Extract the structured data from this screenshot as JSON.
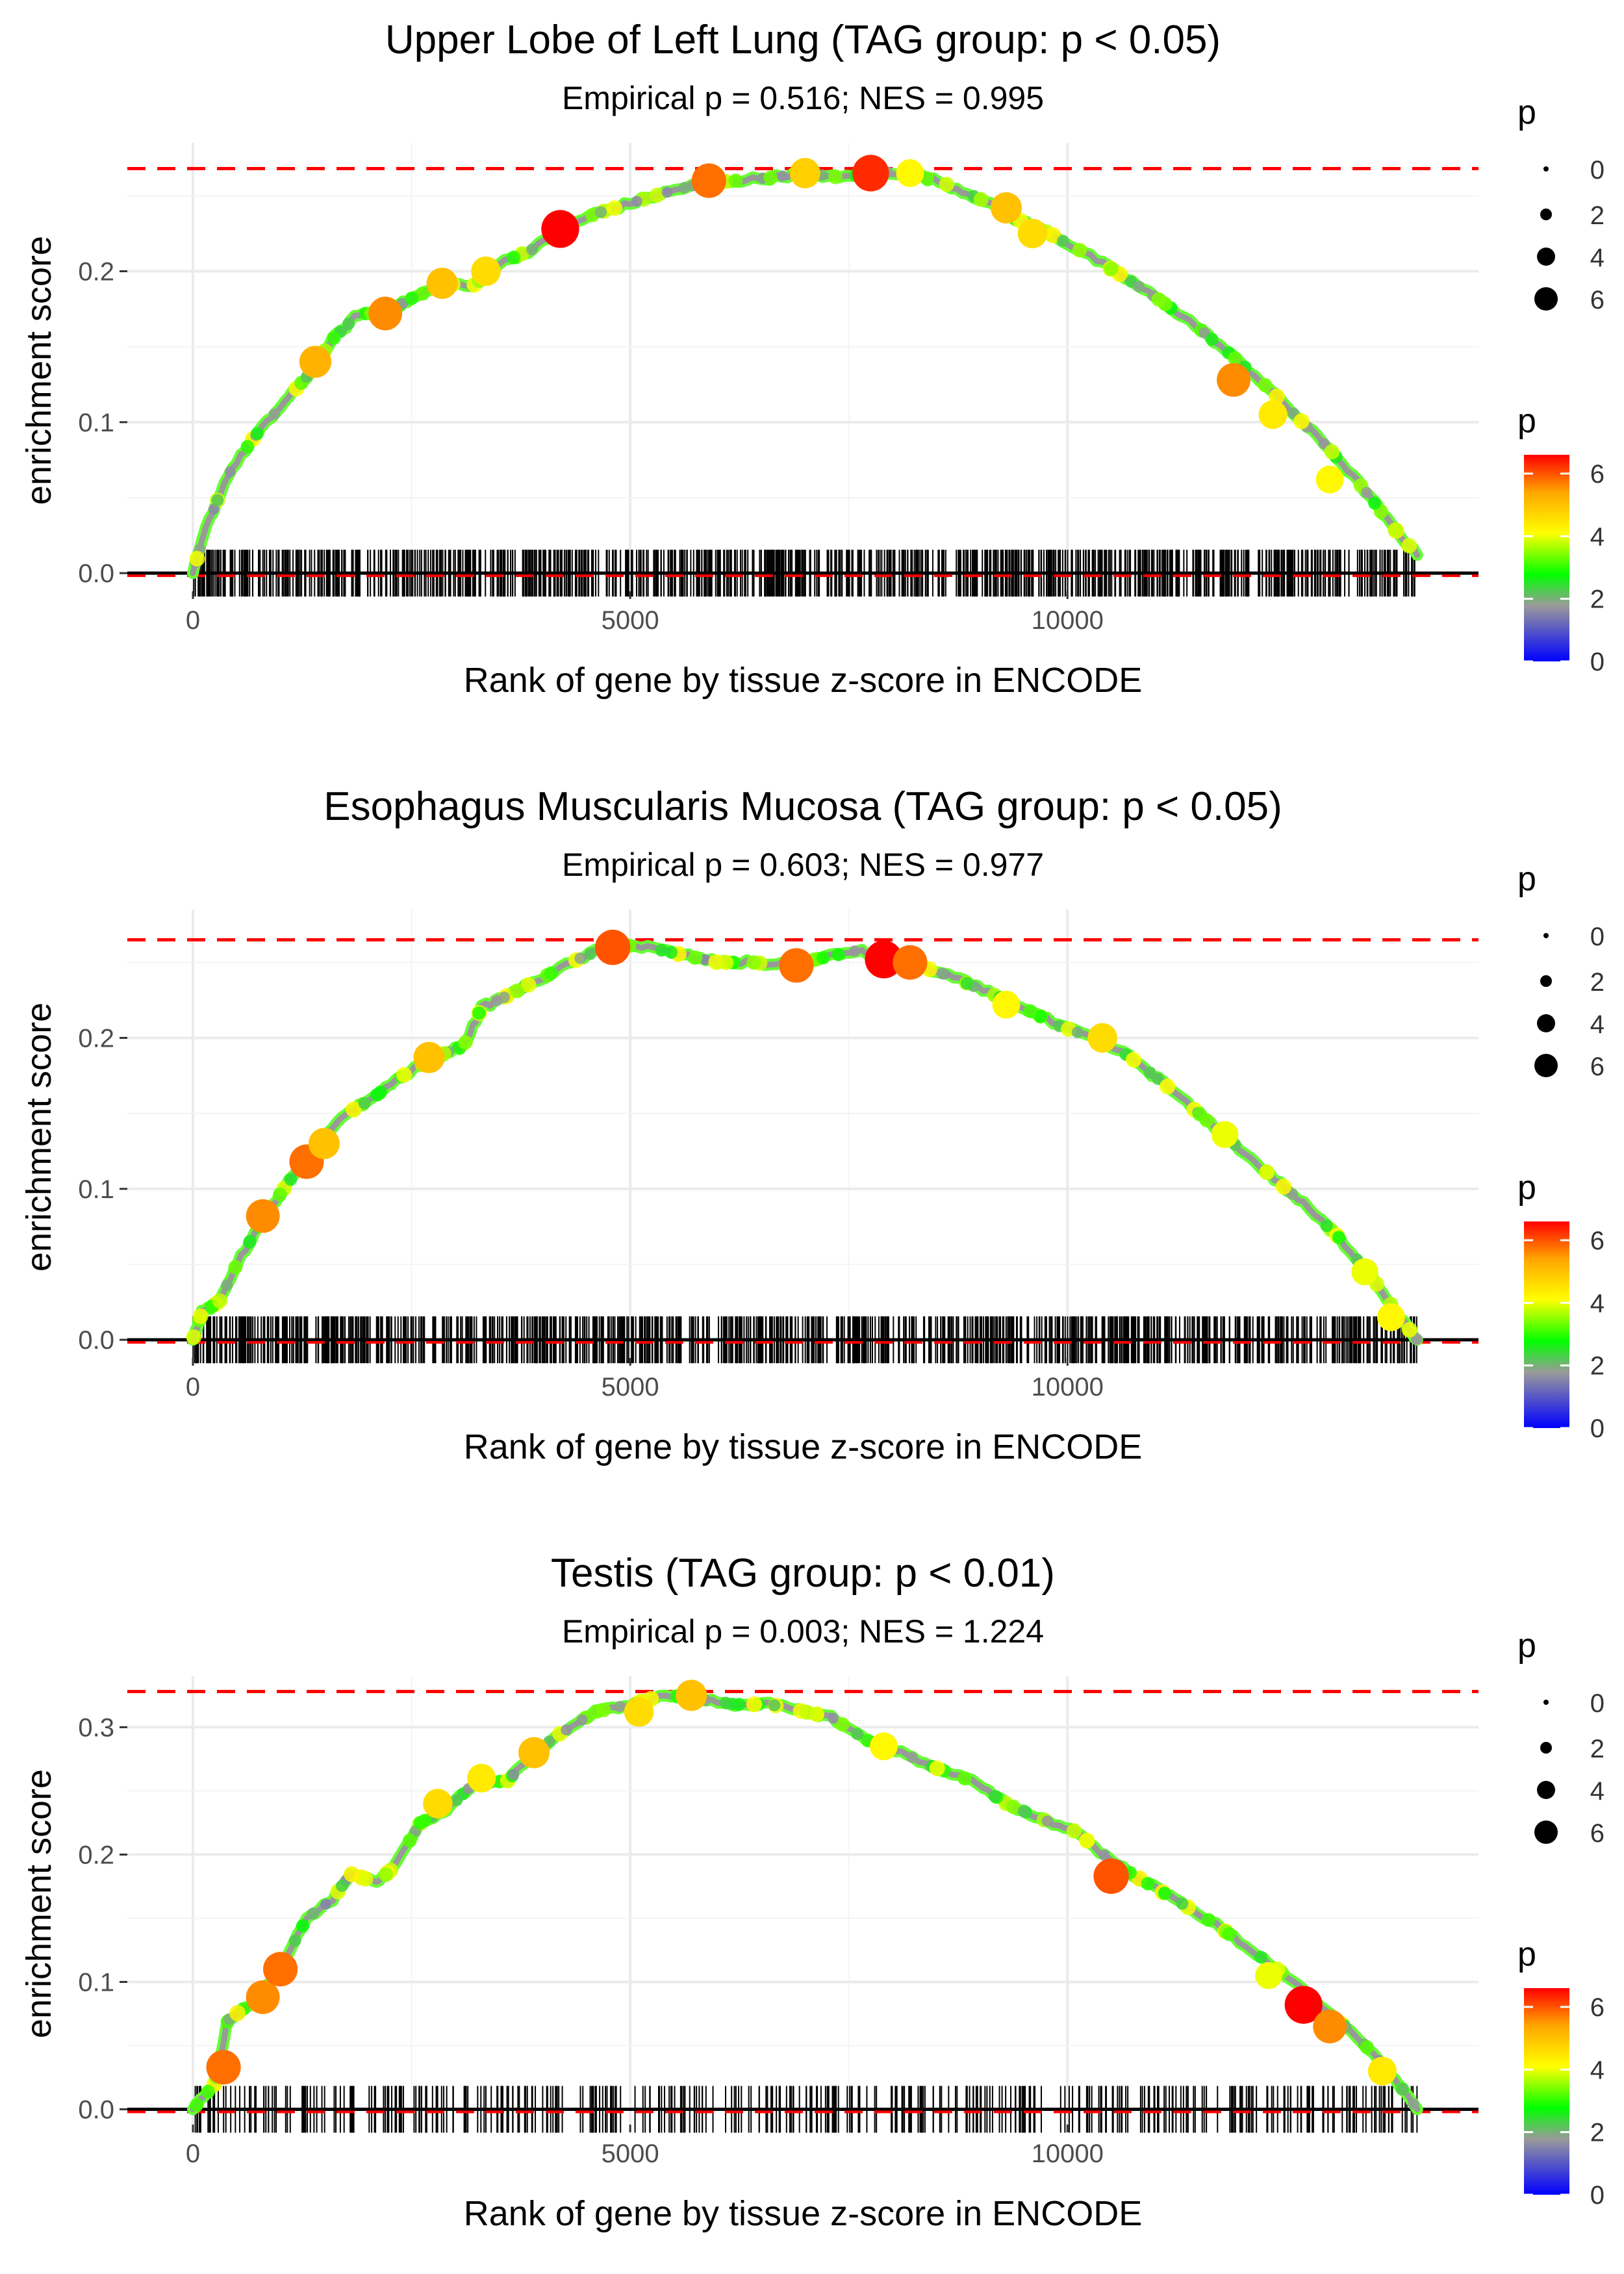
{
  "shared": {
    "xlabel": "Rank of gene by tissue z-score in ENCODE",
    "ylabel": "enrichment score",
    "legend_title": "p",
    "size_legend_values": [
      "0",
      "2",
      "4",
      "6"
    ],
    "colorbar_ticks": [
      "0",
      "2",
      "4",
      "6"
    ],
    "colorbar_tick_values": [
      0,
      2,
      4,
      6
    ],
    "colorbar_range": [
      0,
      6.6
    ],
    "colorbar_colors": [
      "#0000ff",
      "#9a9a9a",
      "#00ff00",
      "#ffff00",
      "#ffa500",
      "#ff0000"
    ],
    "x_ticks": [
      0,
      5000,
      10000
    ],
    "x_tick_labels": [
      "0",
      "5000",
      "10000"
    ],
    "xlim": [
      -750,
      14700
    ],
    "n_genes": 14000,
    "line_color": "#999999",
    "max_line_color": "#ff0000",
    "ink_color": "#000000"
  },
  "chart_data": [
    {
      "type": "line",
      "title": "Upper Lobe of Left Lung (TAG group: p < 0.05)",
      "subtitle": "Empirical p = 0.516; NES = 0.995",
      "ylim": [
        -0.012,
        0.285
      ],
      "y_ticks": [
        0.0,
        0.1,
        0.2
      ],
      "y_tick_labels": [
        "0.0",
        "0.1",
        "0.2"
      ],
      "max_es": 0.268,
      "curve": [
        [
          0,
          0.0
        ],
        [
          150,
          0.03
        ],
        [
          400,
          0.065
        ],
        [
          700,
          0.09
        ],
        [
          1000,
          0.11
        ],
        [
          1300,
          0.13
        ],
        [
          1600,
          0.155
        ],
        [
          1900,
          0.172
        ],
        [
          2200,
          0.172
        ],
        [
          2500,
          0.182
        ],
        [
          2900,
          0.192
        ],
        [
          3200,
          0.19
        ],
        [
          3500,
          0.205
        ],
        [
          3900,
          0.215
        ],
        [
          4200,
          0.228
        ],
        [
          4600,
          0.238
        ],
        [
          5000,
          0.245
        ],
        [
          5400,
          0.252
        ],
        [
          5800,
          0.258
        ],
        [
          6200,
          0.26
        ],
        [
          6600,
          0.262
        ],
        [
          7000,
          0.265
        ],
        [
          7400,
          0.262
        ],
        [
          7800,
          0.266
        ],
        [
          8200,
          0.265
        ],
        [
          8600,
          0.258
        ],
        [
          9000,
          0.248
        ],
        [
          9400,
          0.235
        ],
        [
          9800,
          0.225
        ],
        [
          10200,
          0.212
        ],
        [
          10600,
          0.198
        ],
        [
          11000,
          0.183
        ],
        [
          11400,
          0.167
        ],
        [
          11800,
          0.148
        ],
        [
          12200,
          0.128
        ],
        [
          12600,
          0.105
        ],
        [
          13000,
          0.082
        ],
        [
          13400,
          0.055
        ],
        [
          13700,
          0.032
        ],
        [
          14000,
          0.012
        ]
      ],
      "highlight_points": [
        [
          1400,
          0.14,
          5.2
        ],
        [
          2200,
          0.172,
          5.6
        ],
        [
          2850,
          0.192,
          5.0
        ],
        [
          3350,
          0.2,
          4.6
        ],
        [
          4200,
          0.228,
          6.6
        ],
        [
          5900,
          0.26,
          5.8
        ],
        [
          7000,
          0.265,
          4.8
        ],
        [
          7750,
          0.265,
          6.3
        ],
        [
          8200,
          0.265,
          4.2
        ],
        [
          9300,
          0.242,
          5.0
        ],
        [
          9600,
          0.225,
          4.6
        ],
        [
          11900,
          0.128,
          5.6
        ],
        [
          12350,
          0.105,
          4.4
        ],
        [
          13000,
          0.062,
          4.2
        ]
      ],
      "tick_density": "dense"
    },
    {
      "type": "line",
      "title": "Esophagus Muscularis Mucosa (TAG group: p < 0.05)",
      "subtitle": "Empirical p = 0.603; NES = 0.977",
      "ylim": [
        -0.012,
        0.285
      ],
      "y_ticks": [
        0.0,
        0.1,
        0.2
      ],
      "y_tick_labels": [
        "0.0",
        "0.1",
        "0.2"
      ],
      "max_es": 0.265,
      "curve": [
        [
          0,
          0.0
        ],
        [
          100,
          0.018
        ],
        [
          300,
          0.025
        ],
        [
          500,
          0.05
        ],
        [
          800,
          0.08
        ],
        [
          1100,
          0.105
        ],
        [
          1400,
          0.125
        ],
        [
          1700,
          0.148
        ],
        [
          2000,
          0.158
        ],
        [
          2400,
          0.175
        ],
        [
          2800,
          0.188
        ],
        [
          3100,
          0.195
        ],
        [
          3300,
          0.22
        ],
        [
          3600,
          0.228
        ],
        [
          4000,
          0.24
        ],
        [
          4400,
          0.252
        ],
        [
          4800,
          0.262
        ],
        [
          5200,
          0.26
        ],
        [
          5600,
          0.255
        ],
        [
          6000,
          0.25
        ],
        [
          6400,
          0.25
        ],
        [
          6800,
          0.248
        ],
        [
          7200,
          0.253
        ],
        [
          7600,
          0.258
        ],
        [
          7900,
          0.252
        ],
        [
          8300,
          0.248
        ],
        [
          8700,
          0.24
        ],
        [
          9100,
          0.23
        ],
        [
          9500,
          0.22
        ],
        [
          9900,
          0.208
        ],
        [
          10300,
          0.2
        ],
        [
          10700,
          0.188
        ],
        [
          11100,
          0.17
        ],
        [
          11500,
          0.15
        ],
        [
          11900,
          0.13
        ],
        [
          12300,
          0.11
        ],
        [
          12700,
          0.09
        ],
        [
          13100,
          0.068
        ],
        [
          13500,
          0.04
        ],
        [
          13800,
          0.015
        ],
        [
          14000,
          0.0
        ]
      ],
      "highlight_points": [
        [
          800,
          0.082,
          5.6
        ],
        [
          1300,
          0.118,
          5.8
        ],
        [
          1500,
          0.13,
          5.0
        ],
        [
          2700,
          0.187,
          5.0
        ],
        [
          4800,
          0.26,
          6.0
        ],
        [
          6900,
          0.248,
          5.8
        ],
        [
          7900,
          0.252,
          6.6
        ],
        [
          8200,
          0.25,
          5.8
        ],
        [
          9300,
          0.222,
          4.2
        ],
        [
          10400,
          0.2,
          4.6
        ],
        [
          11800,
          0.136,
          4.0
        ],
        [
          13400,
          0.045,
          4.0
        ],
        [
          13700,
          0.015,
          4.2
        ]
      ],
      "tick_density": "dense"
    },
    {
      "type": "line",
      "title": "Testis (TAG group: p < 0.01)",
      "subtitle": "Empirical p = 0.003; NES = 1.224",
      "ylim": [
        -0.012,
        0.34
      ],
      "y_ticks": [
        0.0,
        0.1,
        0.2,
        0.3
      ],
      "y_tick_labels": [
        "0.0",
        "0.1",
        "0.2",
        "0.3"
      ],
      "max_es": 0.328,
      "curve": [
        [
          0,
          0.0
        ],
        [
          250,
          0.02
        ],
        [
          400,
          0.07
        ],
        [
          700,
          0.085
        ],
        [
          1000,
          0.11
        ],
        [
          1300,
          0.15
        ],
        [
          1600,
          0.165
        ],
        [
          1800,
          0.185
        ],
        [
          2100,
          0.178
        ],
        [
          2300,
          0.19
        ],
        [
          2600,
          0.225
        ],
        [
          2900,
          0.235
        ],
        [
          3200,
          0.255
        ],
        [
          3600,
          0.258
        ],
        [
          3900,
          0.28
        ],
        [
          4200,
          0.295
        ],
        [
          4600,
          0.312
        ],
        [
          5000,
          0.318
        ],
        [
          5400,
          0.325
        ],
        [
          5800,
          0.322
        ],
        [
          6200,
          0.318
        ],
        [
          6600,
          0.318
        ],
        [
          7000,
          0.312
        ],
        [
          7300,
          0.308
        ],
        [
          7700,
          0.29
        ],
        [
          8100,
          0.28
        ],
        [
          8500,
          0.268
        ],
        [
          8900,
          0.258
        ],
        [
          9300,
          0.24
        ],
        [
          9700,
          0.228
        ],
        [
          10100,
          0.218
        ],
        [
          10500,
          0.195
        ],
        [
          10900,
          0.178
        ],
        [
          11300,
          0.162
        ],
        [
          11700,
          0.145
        ],
        [
          12100,
          0.125
        ],
        [
          12500,
          0.105
        ],
        [
          12900,
          0.08
        ],
        [
          13300,
          0.058
        ],
        [
          13700,
          0.028
        ],
        [
          14000,
          0.0
        ]
      ],
      "highlight_points": [
        [
          350,
          0.033,
          5.8
        ],
        [
          800,
          0.088,
          5.6
        ],
        [
          1000,
          0.11,
          5.8
        ],
        [
          2800,
          0.24,
          4.6
        ],
        [
          3300,
          0.26,
          4.4
        ],
        [
          3900,
          0.28,
          5.0
        ],
        [
          5100,
          0.312,
          4.6
        ],
        [
          5700,
          0.325,
          5.0
        ],
        [
          7900,
          0.285,
          4.2
        ],
        [
          10500,
          0.183,
          6.0
        ],
        [
          12300,
          0.105,
          4.0
        ],
        [
          12700,
          0.082,
          6.6
        ],
        [
          13000,
          0.065,
          5.6
        ],
        [
          13600,
          0.03,
          4.4
        ]
      ],
      "tick_density": "sparse"
    }
  ]
}
